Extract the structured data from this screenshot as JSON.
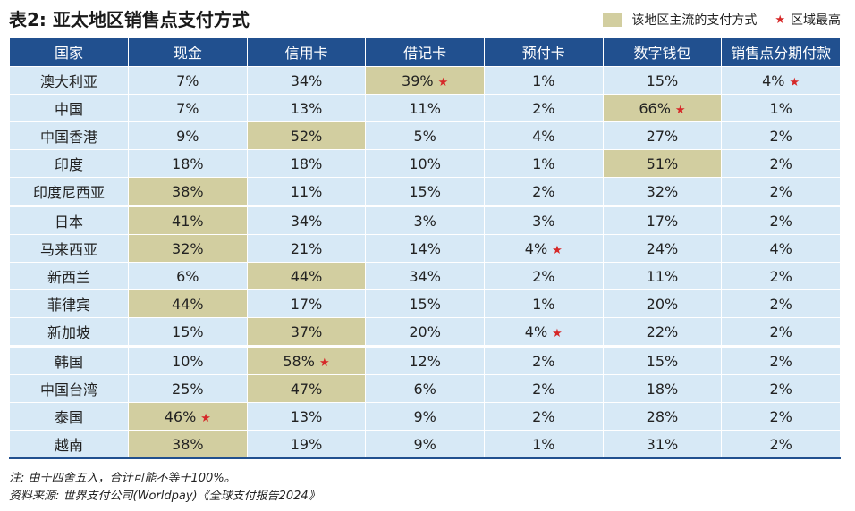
{
  "title": "表2: 亚太地区销售点支付方式",
  "legend": {
    "main": "该地区主流的支付方式",
    "top": "区域最高"
  },
  "table": {
    "header": [
      "国家",
      "现金",
      "信用卡",
      "借记卡",
      "预付卡",
      "数字钱包",
      "销售点分期付款"
    ],
    "rows": [
      {
        "label": "澳大利亚",
        "cells": [
          "7%",
          "34%",
          {
            "text": "39%",
            "main": true,
            "top": true
          },
          "1%",
          "15%",
          {
            "text": "4%",
            "top": true
          }
        ]
      },
      {
        "label": "中国",
        "cells": [
          "7%",
          "13%",
          "11%",
          "2%",
          {
            "text": "66%",
            "main": true,
            "top": true
          },
          "1%"
        ]
      },
      {
        "label": "中国香港",
        "cells": [
          "9%",
          {
            "text": "52%",
            "main": true
          },
          "5%",
          "4%",
          "27%",
          "2%"
        ]
      },
      {
        "label": "印度",
        "cells": [
          "18%",
          "18%",
          "10%",
          "1%",
          {
            "text": "51%",
            "main": true
          },
          "2%"
        ]
      },
      {
        "label": "印度尼西亚",
        "cells": [
          {
            "text": "38%",
            "main": true
          },
          "11%",
          "15%",
          "2%",
          "32%",
          "2%"
        ]
      },
      {
        "label": "日本",
        "group_start": true,
        "cells": [
          {
            "text": "41%",
            "main": true
          },
          "34%",
          "3%",
          "3%",
          "17%",
          "2%"
        ]
      },
      {
        "label": "马来西亚",
        "cells": [
          {
            "text": "32%",
            "main": true
          },
          "21%",
          "14%",
          {
            "text": "4%",
            "top": true
          },
          "24%",
          "4%"
        ]
      },
      {
        "label": "新西兰",
        "cells": [
          "6%",
          {
            "text": "44%",
            "main": true
          },
          "34%",
          "2%",
          "11%",
          "2%"
        ]
      },
      {
        "label": "菲律宾",
        "cells": [
          {
            "text": "44%",
            "main": true
          },
          "17%",
          "15%",
          "1%",
          "20%",
          "2%"
        ]
      },
      {
        "label": "新加坡",
        "cells": [
          "15%",
          {
            "text": "37%",
            "main": true
          },
          "20%",
          {
            "text": "4%",
            "top": true
          },
          "22%",
          "2%"
        ]
      },
      {
        "label": "韩国",
        "group_start": true,
        "cells": [
          "10%",
          {
            "text": "58%",
            "main": true,
            "top": true
          },
          "12%",
          "2%",
          "15%",
          "2%"
        ]
      },
      {
        "label": "中国台湾",
        "cells": [
          "25%",
          {
            "text": "47%",
            "main": true
          },
          "6%",
          "2%",
          "18%",
          "2%"
        ]
      },
      {
        "label": "泰国",
        "cells": [
          {
            "text": "46%",
            "main": true,
            "top": true
          },
          "13%",
          "9%",
          "2%",
          "28%",
          "2%"
        ]
      },
      {
        "label": "越南",
        "cells": [
          {
            "text": "38%",
            "main": true
          },
          "19%",
          "9%",
          "1%",
          "31%",
          "2%"
        ]
      }
    ]
  },
  "notes": [
    "注: 由于四舍五入，合计可能不等于100%。",
    "资料来源: 世界支付公司(Worldpay)《全球支付报告2024》"
  ]
}
